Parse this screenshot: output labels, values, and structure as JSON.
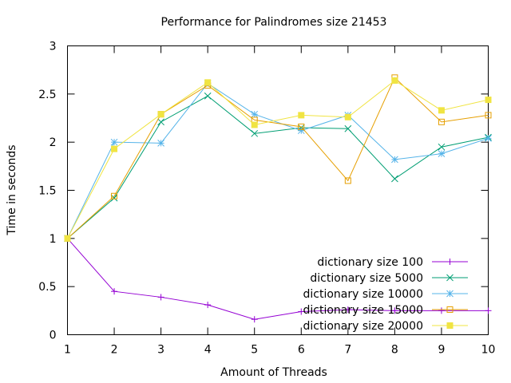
{
  "chart_data": {
    "type": "line",
    "title": "Performance for Palindromes size 21453",
    "xlabel": "Amount of Threads",
    "ylabel": "Time in seconds",
    "xlim": [
      1,
      10
    ],
    "ylim": [
      0,
      3
    ],
    "x_ticks": [
      "1",
      "2",
      "3",
      "4",
      "5",
      "6",
      "7",
      "8",
      "9",
      "10"
    ],
    "y_ticks": [
      "0",
      "0.5",
      "1",
      "1.5",
      "2",
      "2.5",
      "3"
    ],
    "grid": false,
    "legend_position": "bottom-right",
    "x": [
      1,
      2,
      3,
      4,
      5,
      6,
      7,
      8,
      9,
      10
    ],
    "series": [
      {
        "name": "dictionary size 100",
        "color": "#9400d3",
        "marker": "plus",
        "values": [
          1.0,
          0.45,
          0.39,
          0.31,
          0.16,
          0.24,
          0.26,
          0.25,
          0.25,
          0.25
        ]
      },
      {
        "name": "dictionary size 5000",
        "color": "#009e73",
        "marker": "cross",
        "values": [
          1.0,
          1.42,
          2.21,
          2.48,
          2.09,
          2.15,
          2.14,
          1.62,
          1.95,
          2.05
        ]
      },
      {
        "name": "dictionary size 10000",
        "color": "#56b4e9",
        "marker": "star",
        "values": [
          1.0,
          2.0,
          1.99,
          2.61,
          2.29,
          2.12,
          2.28,
          1.82,
          1.88,
          2.04
        ]
      },
      {
        "name": "dictionary size 15000",
        "color": "#e69f00",
        "marker": "open-square",
        "values": [
          1.0,
          1.44,
          2.29,
          2.59,
          2.23,
          2.16,
          1.6,
          2.67,
          2.21,
          2.28
        ]
      },
      {
        "name": "dictionary size 20000",
        "color": "#f0e442",
        "marker": "filled-square",
        "values": [
          1.0,
          1.93,
          2.29,
          2.62,
          2.18,
          2.28,
          2.26,
          2.64,
          2.33,
          2.44
        ]
      }
    ]
  }
}
